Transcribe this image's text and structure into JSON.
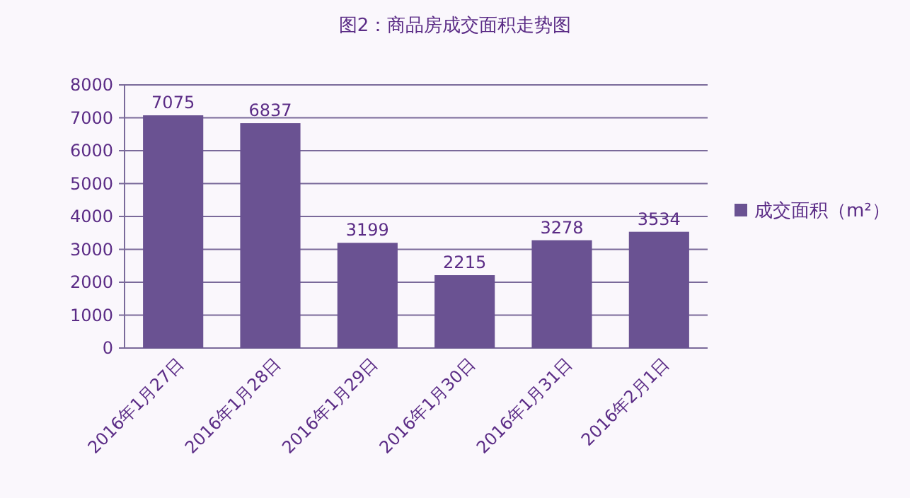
{
  "chart_data": {
    "type": "bar",
    "title": "图2：商品房成交面积走势图",
    "categories": [
      "2016年1月27日",
      "2016年1月28日",
      "2016年1月29日",
      "2016年1月30日",
      "2016年1月31日",
      "2016年2月1日"
    ],
    "series": [
      {
        "name": "成交面积（m²）",
        "color": "#6a5292",
        "values": [
          7075,
          6837,
          3199,
          2215,
          3278,
          3534
        ]
      }
    ],
    "ylim": [
      0,
      8000
    ],
    "yticks": [
      0,
      1000,
      2000,
      3000,
      4000,
      5000,
      6000,
      7000,
      8000
    ],
    "grid": "y",
    "legend": "right",
    "data_labels": true
  }
}
